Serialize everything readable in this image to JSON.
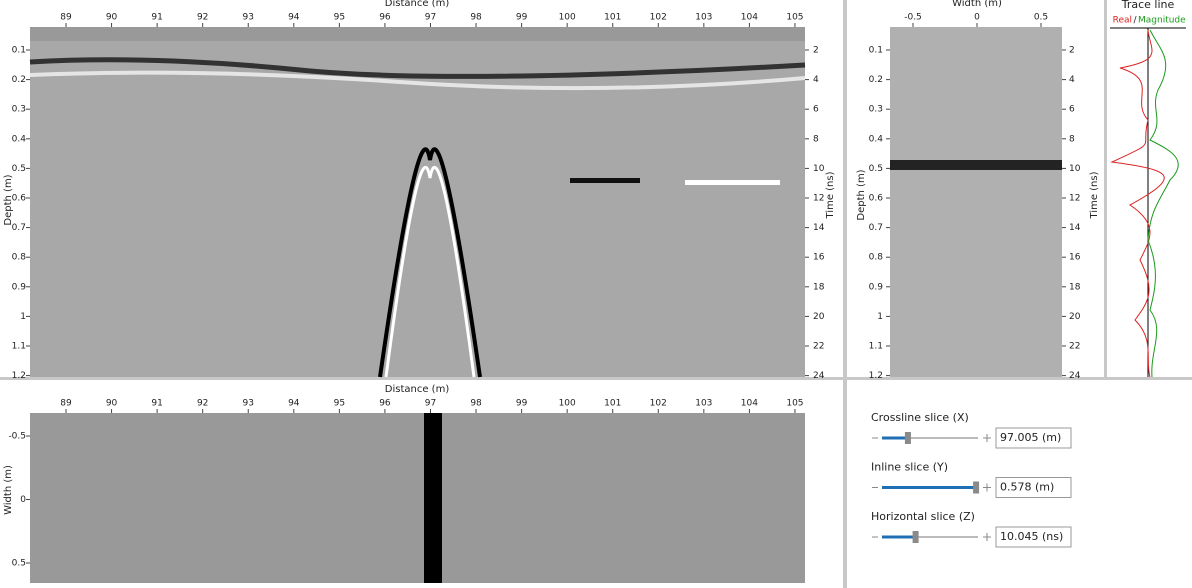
{
  "inline_view": {
    "x_label": "Distance (m)",
    "x_ticks": [
      "89",
      "90",
      "91",
      "92",
      "93",
      "94",
      "95",
      "96",
      "97",
      "98",
      "99",
      "100",
      "101",
      "102",
      "103",
      "104",
      "105"
    ],
    "y_label": "Depth (m)",
    "y_ticks": [
      "0.1",
      "0.2",
      "0.3",
      "0.4",
      "0.5",
      "0.6",
      "0.7",
      "0.8",
      "0.9",
      "1",
      "1.1",
      "1.2"
    ],
    "y2_label": "Time (ns)",
    "y2_ticks": [
      "2",
      "4",
      "6",
      "8",
      "10",
      "12",
      "14",
      "16",
      "18",
      "20",
      "22",
      "24"
    ]
  },
  "crossline_view": {
    "x_label": "Width (m)",
    "x_ticks": [
      "-0.5",
      "0",
      "0.5"
    ],
    "y_label": "Depth (m)",
    "y_ticks": [
      "0.1",
      "0.2",
      "0.3",
      "0.4",
      "0.5",
      "0.6",
      "0.7",
      "0.8",
      "0.9",
      "1",
      "1.1",
      "1.2"
    ],
    "y2_label": "Time (ns)",
    "y2_ticks": [
      "2",
      "4",
      "6",
      "8",
      "10",
      "12",
      "14",
      "16",
      "18",
      "20",
      "22",
      "24"
    ]
  },
  "trace_view": {
    "title": "Trace line",
    "legend_real": "Real",
    "legend_sep": "/",
    "legend_magnitude": "Magnitude"
  },
  "depth_slice_view": {
    "x_label": "Distance (m)",
    "x_ticks": [
      "89",
      "90",
      "91",
      "92",
      "93",
      "94",
      "95",
      "96",
      "97",
      "98",
      "99",
      "100",
      "101",
      "102",
      "103",
      "104",
      "105"
    ],
    "y_label": "Width (m)",
    "y_ticks": [
      "-0.5",
      "0",
      "0.5"
    ]
  },
  "controls": [
    {
      "label": "Crossline slice (X)",
      "value": "97.005 (m)"
    },
    {
      "label": "Inline slice (Y)",
      "value": "0.578 (m)"
    },
    {
      "label": "Horizontal slice (Z)",
      "value": "10.045 (ns)"
    }
  ]
}
